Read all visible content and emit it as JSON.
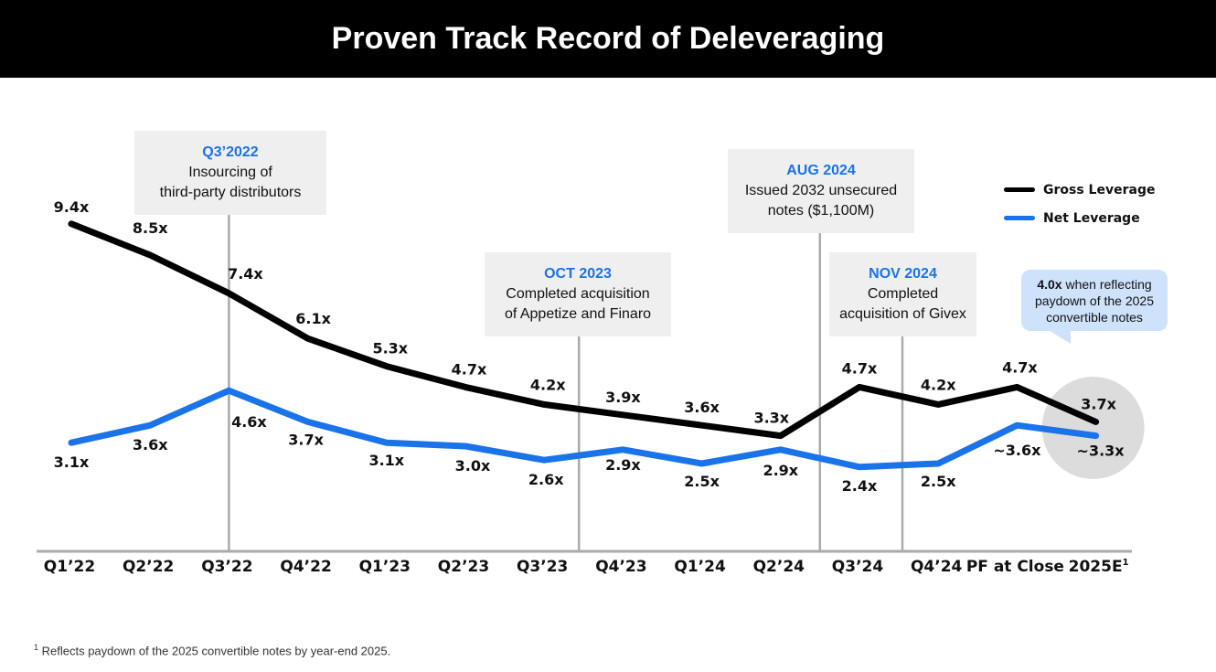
{
  "title": "Proven Track Record of Deleveraging",
  "colors": {
    "gross": "#000000",
    "net": "#1a73e8",
    "vline": "#aaaaaa",
    "axis": "#aaaaaa",
    "highlight": "#dcdcdc"
  },
  "callouts": [
    {
      "head": "Q3’2022",
      "line1": "Insourcing of",
      "line2": "third-party distributors"
    },
    {
      "head": "OCT 2023",
      "line1": "Completed acquisition",
      "line2": "of Appetize and Finaro"
    },
    {
      "head": "AUG 2024",
      "line1": "Issued 2032 unsecured",
      "line2": "notes ($1,100M)"
    },
    {
      "head": "NOV 2024",
      "line1": "Completed",
      "line2": "acquisition of Givex"
    }
  ],
  "bubble": {
    "bold": "4.0x",
    "text1": " when reflecting",
    "text2": "paydown of the 2025",
    "text3": "convertible notes"
  },
  "legend": {
    "gross": "Gross Leverage",
    "net": "Net Leverage"
  },
  "footnote": {
    "sup": "1",
    "text": " Reflects paydown of the 2025 convertible notes by year-end 2025."
  },
  "chart_data": {
    "type": "line",
    "categories": [
      "Q1’22",
      "Q2’22",
      "Q3’22",
      "Q4’22",
      "Q1’23",
      "Q2’23",
      "Q3’23",
      "Q4’23",
      "Q1’24",
      "Q2’24",
      "Q3’24",
      "Q4’24",
      "PF at Close",
      "2025E"
    ],
    "last_category_sup": "1",
    "series": [
      {
        "name": "Gross Leverage",
        "values": [
          9.4,
          8.5,
          7.4,
          6.1,
          5.3,
          4.7,
          4.2,
          3.9,
          3.6,
          3.3,
          4.7,
          4.2,
          4.7,
          3.7
        ],
        "labels": [
          "9.4x",
          "8.5x",
          "7.4x",
          "6.1x",
          "5.3x",
          "4.7x",
          "4.2x",
          "3.9x",
          "3.6x",
          "3.3x",
          "4.7x",
          "4.2x",
          "4.7x",
          "3.7x"
        ]
      },
      {
        "name": "Net Leverage",
        "values": [
          3.1,
          3.6,
          4.6,
          3.7,
          3.1,
          3.0,
          2.6,
          2.9,
          2.5,
          2.9,
          2.4,
          2.5,
          3.6,
          3.3
        ],
        "labels": [
          "3.1x",
          "3.6x",
          "4.6x",
          "3.7x",
          "3.1x",
          "3.0x",
          "2.6x",
          "2.9x",
          "2.5x",
          "2.9x",
          "2.4x",
          "2.5x",
          "~3.6x",
          "~3.3x"
        ]
      }
    ],
    "event_markers": [
      "Q3’22",
      "Q3’23",
      "Q2’24",
      "Q3’24"
    ],
    "ylim": [
      0,
      12
    ],
    "grid": false,
    "legend_position": "top-right"
  }
}
